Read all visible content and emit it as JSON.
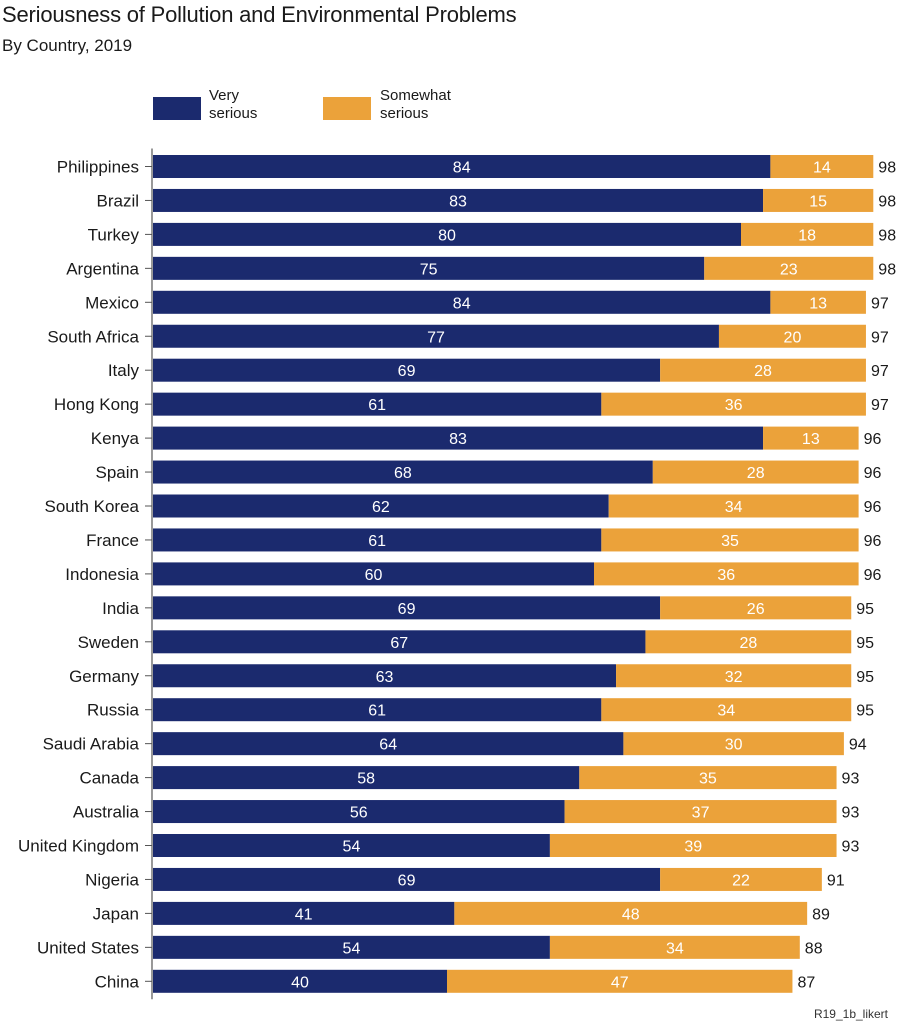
{
  "title": "Seriousness of Pollution and Environmental Problems",
  "subtitle": "By Country, 2019",
  "footer": "R19_1b_likert",
  "colors": {
    "very_serious": "#1b2a6e",
    "somewhat_serious": "#eba23a",
    "axis": "#555555"
  },
  "legend": [
    {
      "name": "Very\nserious",
      "color": "#1b2a6e"
    },
    {
      "name": "Somewhat\nserious",
      "color": "#eba23a"
    }
  ],
  "chart_data": {
    "type": "bar",
    "orientation": "horizontal",
    "stacked": true,
    "title": "Seriousness of Pollution and Environmental Problems",
    "subtitle": "By Country, 2019",
    "categories": [
      "Philippines",
      "Brazil",
      "Turkey",
      "Argentina",
      "Mexico",
      "South Africa",
      "Italy",
      "Hong Kong",
      "Kenya",
      "Spain",
      "South Korea",
      "France",
      "Indonesia",
      "India",
      "Sweden",
      "Germany",
      "Russia",
      "Saudi Arabia",
      "Canada",
      "Australia",
      "United Kingdom",
      "Nigeria",
      "Japan",
      "United States",
      "China"
    ],
    "series": [
      {
        "name": "Very\nserious",
        "values": [
          84,
          83,
          80,
          75,
          84,
          77,
          69,
          61,
          83,
          68,
          62,
          61,
          60,
          69,
          67,
          63,
          61,
          64,
          58,
          56,
          54,
          69,
          41,
          54,
          40
        ]
      },
      {
        "name": "Somewhat\nserious",
        "values": [
          14,
          15,
          18,
          23,
          13,
          20,
          28,
          36,
          13,
          28,
          34,
          35,
          36,
          26,
          28,
          32,
          34,
          30,
          35,
          37,
          39,
          22,
          48,
          34,
          47
        ]
      }
    ],
    "totals": [
      98,
      98,
      98,
      98,
      97,
      97,
      97,
      97,
      96,
      96,
      96,
      96,
      96,
      95,
      95,
      95,
      95,
      94,
      93,
      93,
      93,
      91,
      89,
      88,
      87
    ],
    "xlim": [
      0,
      100
    ],
    "legend_position": "top-left",
    "grid": false
  }
}
